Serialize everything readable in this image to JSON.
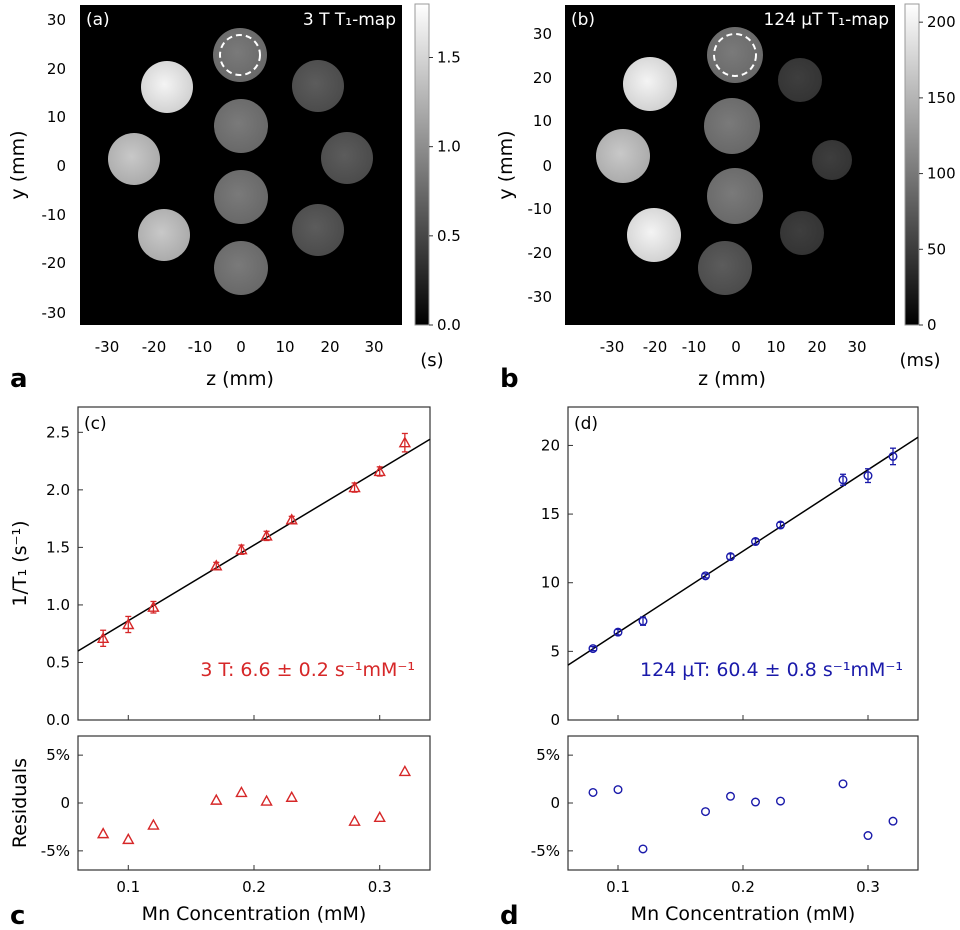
{
  "panel_letters": [
    "a",
    "b",
    "c",
    "d"
  ],
  "colorbars": {
    "a": {
      "ticks": [
        "1.5",
        "1.0",
        "0.5",
        "0.0"
      ],
      "tick_values": [
        1.5,
        1.0,
        0.5,
        0.0
      ],
      "range": [
        0,
        1.8
      ],
      "unit": "(s)"
    },
    "b": {
      "ticks": [
        "200",
        "150",
        "100",
        "50",
        "0"
      ],
      "tick_values": [
        200,
        150,
        100,
        50,
        0
      ],
      "range": [
        0,
        212
      ],
      "unit": "(ms)"
    }
  },
  "maps": {
    "a": {
      "label": "(a)",
      "title": "3 T T₁-map",
      "x_ticks": [
        "-30",
        "-20",
        "-10",
        "0",
        "10",
        "20",
        "30"
      ],
      "y_ticks": [
        "30",
        "20",
        "10",
        "0",
        "-10",
        "-20",
        "-30"
      ],
      "xlabel": "z (mm)",
      "ylabel": "y (mm)"
    },
    "b": {
      "label": "(b)",
      "title": "124 μT T₁-map",
      "x_ticks": [
        "-30",
        "-20",
        "-10",
        "0",
        "10",
        "20",
        "30"
      ],
      "y_ticks": [
        "30",
        "20",
        "10",
        "0",
        "-10",
        "-20",
        "-30"
      ],
      "xlabel": "z (mm)",
      "ylabel": "y (mm)"
    }
  },
  "chart_data": [
    {
      "type": "scatter",
      "label": "(c)",
      "color": "#d62728",
      "marker": "triangle",
      "ylabel": "1/T₁ (s⁻¹)",
      "xlabel": "Mn Concentration (mM)",
      "annotation": "3 T: 6.6 ± 0.2 s⁻¹mM⁻¹",
      "x_ticks": [
        "0.1",
        "0.2",
        "0.3"
      ],
      "y_ticks": [
        "0.0",
        "0.5",
        "1.0",
        "1.5",
        "2.0",
        "2.5"
      ],
      "x": [
        0.08,
        0.1,
        0.12,
        0.17,
        0.19,
        0.21,
        0.23,
        0.28,
        0.3,
        0.32
      ],
      "y": [
        0.71,
        0.83,
        0.98,
        1.34,
        1.48,
        1.6,
        1.74,
        2.02,
        2.16,
        2.41
      ],
      "yerr": [
        0.07,
        0.07,
        0.05,
        0.03,
        0.04,
        0.04,
        0.03,
        0.04,
        0.04,
        0.08
      ],
      "fit": {
        "x": [
          0.06,
          0.34
        ],
        "y": [
          0.6,
          2.44
        ]
      },
      "residuals_label": "Residuals",
      "residual_ticks": [
        "5%",
        "0",
        "-5%"
      ],
      "residuals": [
        -3.2,
        -3.8,
        -2.3,
        0.3,
        1.1,
        0.2,
        0.6,
        -1.9,
        -1.5,
        3.3
      ],
      "xlim": [
        0.06,
        0.34
      ],
      "ylim": [
        0,
        2.72
      ],
      "residual_ylim": [
        -7,
        7
      ]
    },
    {
      "type": "scatter",
      "label": "(d)",
      "color": "#1a1aaa",
      "marker": "circle",
      "ylabel": "",
      "xlabel": "Mn Concentration (mM)",
      "annotation": "124 μT: 60.4 ± 0.8 s⁻¹mM⁻¹",
      "x_ticks": [
        "0.1",
        "0.2",
        "0.3"
      ],
      "y_ticks": [
        "0",
        "5",
        "10",
        "15",
        "20"
      ],
      "x": [
        0.08,
        0.1,
        0.12,
        0.17,
        0.19,
        0.21,
        0.23,
        0.28,
        0.3,
        0.32
      ],
      "y": [
        5.2,
        6.4,
        7.2,
        10.5,
        11.9,
        13.0,
        14.2,
        17.5,
        17.8,
        19.2
      ],
      "yerr": [
        0.15,
        0.2,
        0.3,
        0.15,
        0.2,
        0.2,
        0.2,
        0.4,
        0.5,
        0.6
      ],
      "fit": {
        "x": [
          0.06,
          0.34
        ],
        "y": [
          4.0,
          20.6
        ]
      },
      "residuals_label": "",
      "residual_ticks": [
        "5%",
        "0",
        "-5%"
      ],
      "residuals": [
        1.1,
        1.4,
        -4.8,
        -0.9,
        0.7,
        0.1,
        0.2,
        2.0,
        -3.4,
        -1.9
      ],
      "xlim": [
        0.06,
        0.34
      ],
      "ylim": [
        0,
        22.8
      ],
      "residual_ylim": [
        -7,
        7
      ]
    }
  ]
}
